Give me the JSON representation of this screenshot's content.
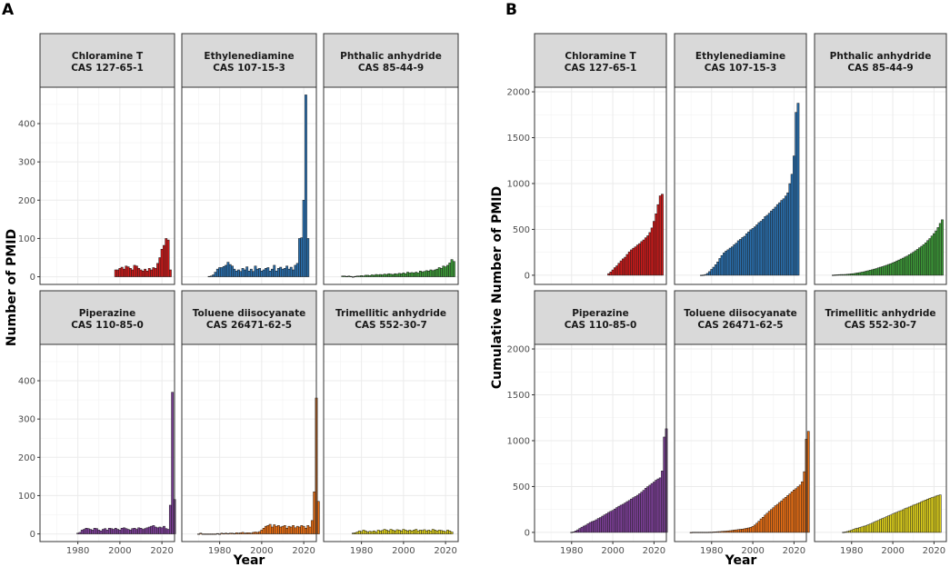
{
  "colors": {
    "Chloramine T": "#cc1a1a",
    "Ethylenediamine": "#2a6fad",
    "Phthalic anhydride": "#3d9a38",
    "Piperazine": "#7d3f98",
    "Toluene diisocyanate": "#ec7014",
    "Trimellitic anhydride": "#e0d21c",
    "strip_background": "#d9d9d9",
    "grid": "#ebebeb"
  },
  "panels": [
    {
      "letter": "A",
      "xlabel": "Year",
      "ylabel": "Number of PMID"
    },
    {
      "letter": "B",
      "xlabel": "Year",
      "ylabel": "Cumulative Number of PMID"
    }
  ],
  "chart_data": [
    {
      "type": "bar",
      "panel": "A",
      "xlabel": "Year",
      "ylabel": "Number of PMID",
      "xlim": [
        1962,
        2026
      ],
      "ylim": [
        -20,
        495
      ],
      "xticks": [
        1980,
        2000,
        2020
      ],
      "yticks": [
        0,
        100,
        200,
        300,
        400
      ],
      "facets": [
        {
          "name": "Chloramine T",
          "cas": "CAS 127-65-1",
          "start": 1998,
          "values": [
            18,
            18,
            22,
            25,
            20,
            28,
            26,
            22,
            18,
            30,
            28,
            22,
            18,
            15,
            20,
            15,
            22,
            18,
            24,
            22,
            35,
            50,
            72,
            82,
            100,
            96,
            18
          ]
        },
        {
          "name": "Ethylenediamine",
          "cas": "CAS 107-15-3",
          "start": 1975,
          "values": [
            1,
            2,
            5,
            12,
            20,
            24,
            24,
            27,
            30,
            38,
            32,
            28,
            20,
            15,
            18,
            14,
            22,
            18,
            26,
            15,
            20,
            14,
            28,
            20,
            22,
            15,
            18,
            22,
            24,
            15,
            20,
            30,
            15,
            22,
            25,
            20,
            22,
            28,
            20,
            25,
            18,
            30,
            35,
            100,
            102,
            200,
            475,
            100
          ]
        },
        {
          "name": "Phthalic anhydride",
          "cas": "CAS 85-44-9",
          "start": 1971,
          "values": [
            2,
            2,
            1,
            2,
            1,
            0,
            1,
            2,
            2,
            3,
            2,
            4,
            4,
            3,
            5,
            4,
            6,
            5,
            6,
            5,
            7,
            6,
            8,
            7,
            6,
            8,
            7,
            9,
            8,
            10,
            8,
            12,
            10,
            11,
            10,
            12,
            10,
            15,
            13,
            14,
            16,
            15,
            18,
            16,
            18,
            20,
            24,
            22,
            28,
            26,
            30,
            36,
            45,
            40
          ]
        },
        {
          "name": "Piperazine",
          "cas": "CAS 110-85-0",
          "start": 1980,
          "values": [
            2,
            4,
            10,
            12,
            15,
            14,
            12,
            10,
            15,
            14,
            10,
            8,
            12,
            14,
            10,
            15,
            14,
            12,
            15,
            12,
            10,
            15,
            16,
            14,
            12,
            10,
            14,
            15,
            12,
            16,
            15,
            12,
            14,
            16,
            18,
            20,
            22,
            18,
            16,
            18,
            16,
            20,
            14,
            12,
            75,
            370,
            90
          ]
        },
        {
          "name": "Toluene diisocyanate",
          "cas": "CAS 26471-62-5",
          "start": 1970,
          "values": [
            0,
            2,
            0,
            0,
            0,
            0,
            0,
            0,
            0,
            1,
            0,
            2,
            1,
            2,
            1,
            2,
            2,
            1,
            3,
            2,
            3,
            4,
            2,
            3,
            3,
            2,
            4,
            5,
            4,
            6,
            10,
            15,
            20,
            22,
            25,
            18,
            24,
            20,
            22,
            18,
            20,
            22,
            15,
            20,
            18,
            22,
            16,
            20,
            18,
            22,
            20,
            15,
            22,
            18,
            35,
            110,
            355,
            85
          ]
        },
        {
          "name": "Trimellitic anhydride",
          "cas": "CAS 552-30-7",
          "start": 1976,
          "values": [
            2,
            3,
            5,
            8,
            6,
            10,
            8,
            5,
            7,
            6,
            8,
            5,
            10,
            8,
            9,
            12,
            10,
            8,
            12,
            10,
            8,
            11,
            10,
            8,
            12,
            10,
            8,
            10,
            8,
            10,
            12,
            8,
            10,
            9,
            11,
            8,
            10,
            8,
            12,
            10,
            8,
            10,
            9,
            8,
            6,
            10,
            8,
            5
          ]
        }
      ]
    },
    {
      "type": "bar",
      "panel": "B",
      "xlabel": "Year",
      "ylabel": "Cumulative Number of PMID",
      "xlim": [
        1962,
        2026
      ],
      "ylim": [
        -100,
        2050
      ],
      "xticks": [
        1980,
        2000,
        2020
      ],
      "yticks": [
        0,
        500,
        1000,
        1500,
        2000
      ],
      "facets": [
        {
          "name": "Chloramine T",
          "cas": "CAS 127-65-1",
          "start": 1998,
          "values": [
            18,
            36,
            58,
            83,
            103,
            131,
            157,
            179,
            197,
            227,
            255,
            277,
            295,
            310,
            330,
            345,
            367,
            385,
            409,
            431,
            466,
            516,
            588,
            670,
            770,
            866,
            884
          ]
        },
        {
          "name": "Ethylenediamine",
          "cas": "CAS 107-15-3",
          "start": 1975,
          "values": [
            1,
            3,
            8,
            20,
            40,
            64,
            88,
            115,
            145,
            183,
            215,
            243,
            263,
            278,
            296,
            310,
            332,
            350,
            376,
            391,
            411,
            425,
            453,
            473,
            495,
            510,
            528,
            550,
            574,
            589,
            609,
            639,
            654,
            676,
            701,
            721,
            743,
            771,
            791,
            816,
            834,
            864,
            899,
            999,
            1101,
            1301,
            1776,
            1876
          ]
        },
        {
          "name": "Phthalic anhydride",
          "cas": "CAS 85-44-9",
          "start": 1971,
          "values": [
            2,
            4,
            5,
            7,
            8,
            8,
            9,
            11,
            13,
            16,
            18,
            22,
            26,
            29,
            34,
            38,
            44,
            49,
            55,
            60,
            67,
            73,
            81,
            88,
            94,
            102,
            109,
            118,
            126,
            136,
            144,
            156,
            166,
            177,
            187,
            199,
            209,
            224,
            237,
            251,
            267,
            282,
            300,
            316,
            334,
            354,
            378,
            400,
            428,
            454,
            484,
            520,
            565,
            605
          ]
        },
        {
          "name": "Piperazine",
          "cas": "CAS 110-85-0",
          "start": 1980,
          "values": [
            2,
            6,
            16,
            28,
            43,
            57,
            69,
            79,
            94,
            108,
            118,
            126,
            138,
            152,
            162,
            177,
            191,
            203,
            218,
            230,
            240,
            255,
            271,
            285,
            297,
            307,
            321,
            336,
            348,
            364,
            379,
            391,
            405,
            421,
            439,
            459,
            481,
            499,
            515,
            533,
            549,
            569,
            583,
            595,
            670,
            1040,
            1130
          ]
        },
        {
          "name": "Toluene diisocyanate",
          "cas": "CAS 26471-62-5",
          "start": 1970,
          "values": [
            0,
            2,
            2,
            2,
            2,
            2,
            2,
            2,
            2,
            3,
            3,
            5,
            6,
            8,
            9,
            11,
            13,
            14,
            17,
            19,
            22,
            26,
            28,
            31,
            34,
            36,
            40,
            45,
            49,
            55,
            65,
            80,
            100,
            122,
            147,
            165,
            189,
            209,
            231,
            249,
            269,
            291,
            306,
            326,
            344,
            366,
            382,
            402,
            420,
            442,
            462,
            477,
            499,
            517,
            552,
            662,
            1017,
            1102
          ]
        },
        {
          "name": "Trimellitic anhydride",
          "cas": "CAS 552-30-7",
          "start": 1976,
          "values": [
            2,
            5,
            10,
            18,
            24,
            34,
            42,
            47,
            54,
            60,
            68,
            73,
            83,
            91,
            100,
            112,
            122,
            130,
            142,
            152,
            160,
            171,
            181,
            189,
            201,
            211,
            219,
            229,
            237,
            247,
            259,
            267,
            277,
            286,
            297,
            305,
            315,
            323,
            335,
            345,
            353,
            363,
            372,
            380,
            386,
            396,
            404,
            409
          ]
        }
      ]
    }
  ]
}
